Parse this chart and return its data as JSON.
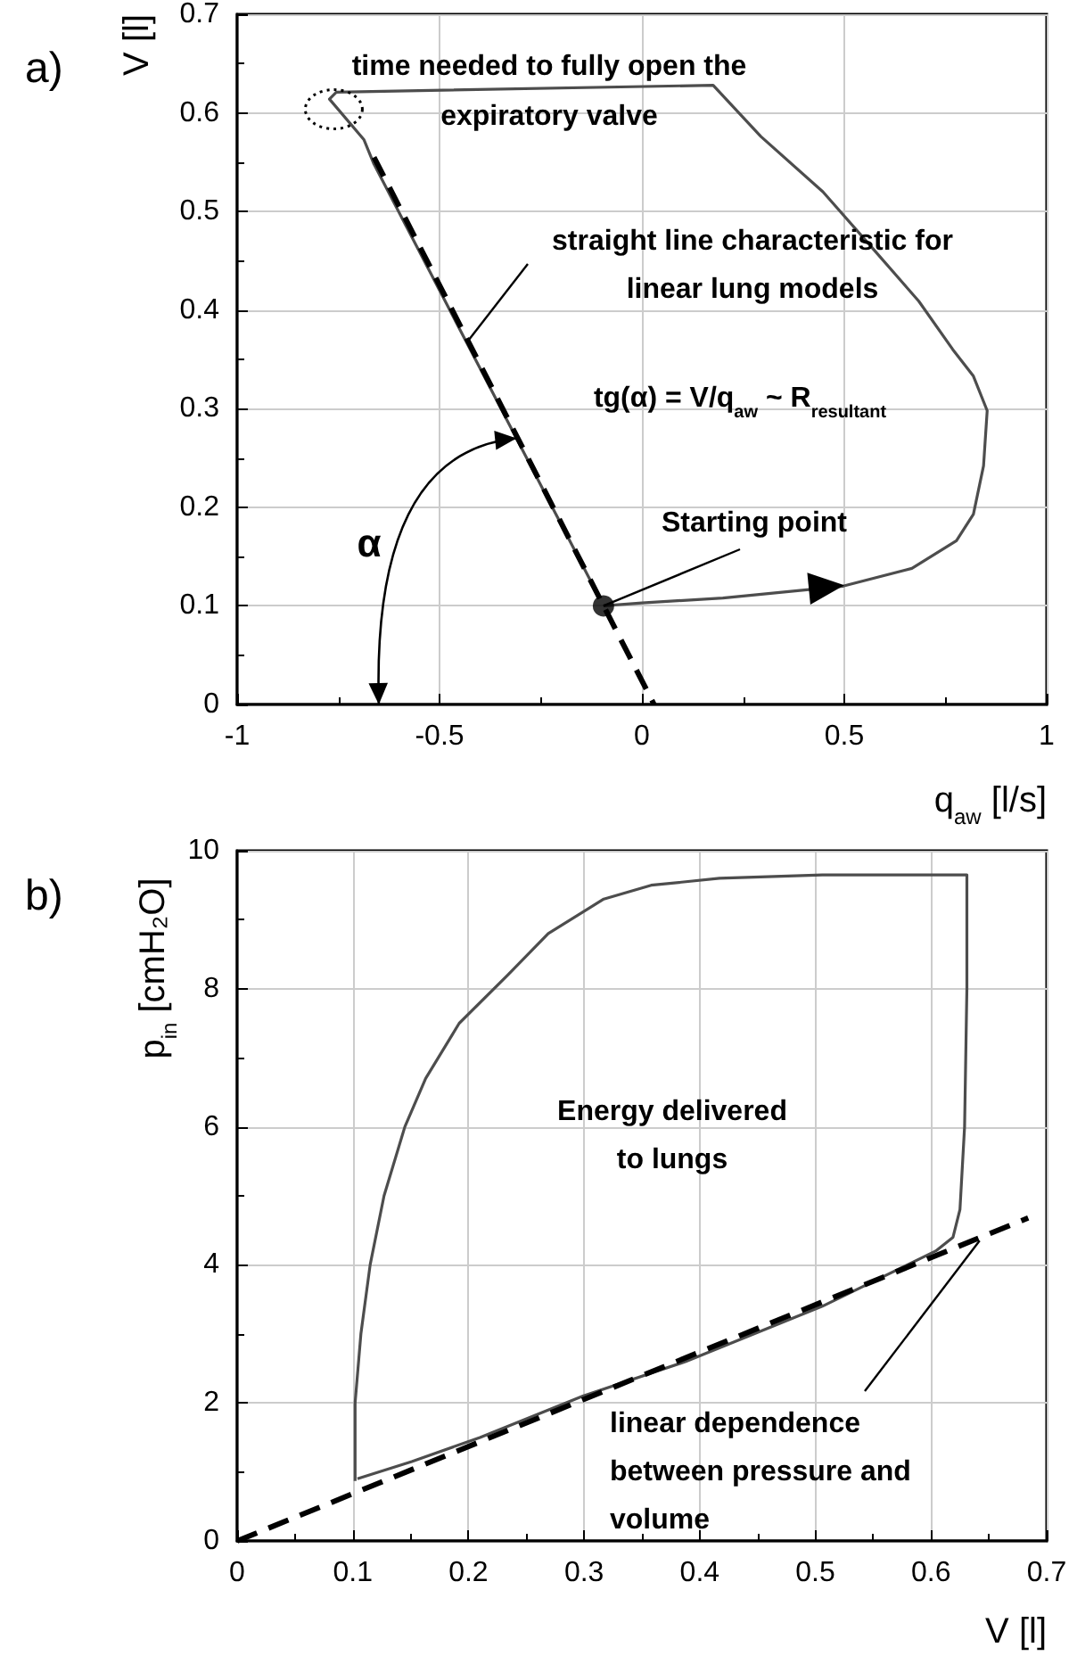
{
  "chart_data": [
    {
      "type": "line",
      "title": "a)",
      "xlabel": "q$_{aw}$ [l/s]",
      "ylabel": "V [l]",
      "xlim": [
        -1,
        1
      ],
      "ylim": [
        0,
        0.7
      ],
      "xticks": [
        -1,
        -0.5,
        0,
        0.5,
        1
      ],
      "yticks": [
        0,
        0.1,
        0.2,
        0.3,
        0.4,
        0.5,
        0.6,
        0.7
      ],
      "grid": true,
      "marker": "none",
      "line_style": "solid",
      "annotations": [
        "time needed to fully open the\nexpiratory valve",
        {
          "text": "straight line characteristic for\nlinear lung models",
          "x": -0.433,
          "y": 0.367
        },
        "tg(α) = V/q$_{aw}$ ~ R$_{resultant}$",
        "α",
        {
          "text": "Starting point",
          "x": -0.095,
          "y": 0.1
        }
      ],
      "series": [
        {
          "color": "#4d4d4d",
          "x": [
            -0.095,
            0.0,
            0.2,
            0.497,
            0.667,
            0.777,
            0.819,
            0.844,
            0.853,
            0.819,
            0.768,
            0.684,
            0.565,
            0.447,
            0.294,
            0.176,
            -0.755,
            -0.772,
            -0.687,
            -0.662,
            -0.5,
            -0.3,
            -0.12
          ],
          "values": [
            0.1,
            0.103,
            0.108,
            0.12,
            0.138,
            0.166,
            0.193,
            0.242,
            0.298,
            0.333,
            0.36,
            0.409,
            0.465,
            0.52,
            0.576,
            0.628,
            0.621,
            0.614,
            0.573,
            0.548,
            0.42,
            0.262,
            0.12
          ]
        },
        {
          "type": "line",
          "line_style": "dashed",
          "color": "#000000",
          "x": [
            -0.662,
            0.03
          ],
          "values": [
            0.555,
            0.0
          ]
        },
        {
          "type": "scatter",
          "marker": "circle",
          "color": "#000000",
          "x": [
            -0.095
          ],
          "values": [
            0.1
          ]
        }
      ]
    },
    {
      "type": "line",
      "title": "b)",
      "xlabel": "V [l]",
      "ylabel": "p$_{in}$ [cmH₂O]",
      "xlim": [
        0,
        0.7
      ],
      "ylim": [
        0,
        10
      ],
      "xticks": [
        0,
        0.1,
        0.2,
        0.3,
        0.4,
        0.5,
        0.6,
        0.7
      ],
      "yticks": [
        0,
        2,
        4,
        6,
        8,
        10
      ],
      "grid": true,
      "marker": "none",
      "line_style": "solid",
      "annotations": [
        "Energy delivered\nto lungs",
        {
          "text": "linear dependence\nbetween pressure and\nvolume",
          "x": 0.642,
          "y": 4.35
        }
      ],
      "series": [
        {
          "color": "#4d4d4d",
          "x": [
            0.102,
            0.102,
            0.107,
            0.115,
            0.127,
            0.145,
            0.163,
            0.192,
            0.234,
            0.269,
            0.317,
            0.358,
            0.417,
            0.506,
            0.631,
            0.631,
            0.629,
            0.625,
            0.619,
            0.604,
            0.506,
            0.388,
            0.299,
            0.21,
            0.151,
            0.104
          ],
          "values": [
            0.87,
            2.0,
            3.0,
            4.0,
            5.0,
            6.0,
            6.7,
            7.5,
            8.2,
            8.8,
            9.3,
            9.5,
            9.6,
            9.65,
            9.65,
            8.0,
            6.0,
            4.8,
            4.4,
            4.2,
            3.4,
            2.6,
            2.1,
            1.5,
            1.15,
            0.9
          ]
        },
        {
          "type": "line",
          "line_style": "dashed",
          "color": "#000000",
          "x": [
            0,
            0.684
          ],
          "values": [
            0,
            4.68
          ]
        }
      ]
    }
  ]
}
